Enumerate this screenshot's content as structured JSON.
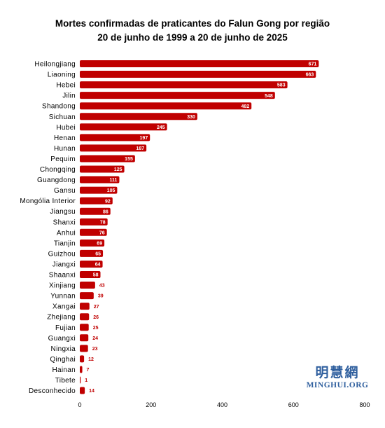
{
  "chart_data": {
    "type": "bar",
    "orientation": "horizontal",
    "title": "Mortes confirmadas de praticantes do Falun Gong por região",
    "subtitle": "20 de junho de 1999 a 20 de junho de 2025",
    "categories": [
      "Heilongjiang",
      "Liaoning",
      "Hebei",
      "Jilin",
      "Shandong",
      "Sichuan",
      "Hubei",
      "Henan",
      "Hunan",
      "Pequim",
      "Chongqing",
      "Guangdong",
      "Gansu",
      "Mongólia Interior",
      "Jiangsu",
      "Shanxi",
      "Anhui",
      "Tianjin",
      "Guizhou",
      "Jiangxi",
      "Shaanxi",
      "Xinjiang",
      "Yunnan",
      "Xangai",
      "Zhejiang",
      "Fujian",
      "Guangxi",
      "Ningxia",
      "Qinghai",
      "Hainan",
      "Tibete",
      "Desconhecido"
    ],
    "values": [
      671,
      663,
      583,
      548,
      482,
      330,
      245,
      197,
      187,
      155,
      125,
      111,
      105,
      92,
      86,
      78,
      76,
      69,
      65,
      64,
      58,
      43,
      39,
      27,
      26,
      25,
      24,
      23,
      12,
      7,
      1,
      14
    ],
    "xlim": [
      0,
      800
    ],
    "xticks": [
      0,
      200,
      400,
      600,
      800
    ],
    "xlabel": "",
    "ylabel": "",
    "grid": false,
    "legend": "none",
    "bar_color": "#c00000",
    "label_inside_color": "#ffffff",
    "label_outside_color": "#c00000"
  },
  "watermark": {
    "cjk": "明慧網",
    "latin": "MINGHUI.ORG",
    "color": "#2f5f9e"
  }
}
